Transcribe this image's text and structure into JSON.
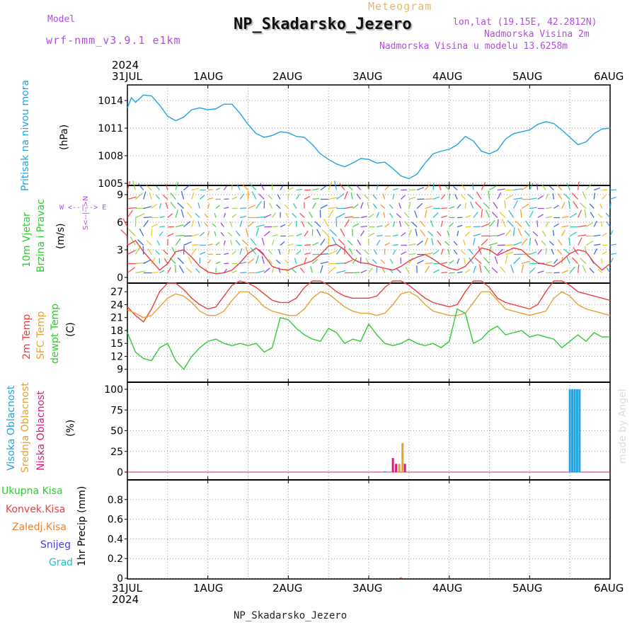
{
  "header": {
    "model_label": "Model",
    "model_name": "wrf-nmm_v3.9.1  e1km",
    "meteogram_label": "Meteogram",
    "station_title": "NP_Skadarsko_Jezero",
    "lonlat": "lon,lat (19.15E, 42.2812N)",
    "elevation": "Nadmorska Visina 2m",
    "model_elevation": "Nadmorska Visina u modelu 13.6258m"
  },
  "x_axis": {
    "year": "2024",
    "ticks": [
      "31JUL",
      "1AUG",
      "2AUG",
      "3AUG",
      "4AUG",
      "5AUG",
      "6AUG"
    ]
  },
  "footer": {
    "station": "NP_Skadarsko_Jezero",
    "credit": "made by Angel"
  },
  "panel_labels": {
    "pressure": {
      "name": "Pritisak na nivou mora",
      "unit": "(hPa)"
    },
    "wind": {
      "line1": "10m Vjetar",
      "line2": "Brzina i Pravac",
      "unit": "(m/s)",
      "compass_ns": "S<--|-->N",
      "compass_we": "W <--|--> E"
    },
    "temp": {
      "t2m": "2m Temp",
      "sfc": "SFC Temp",
      "dew": "dewpt Temp",
      "unit": "(C)"
    },
    "cloud": {
      "high": "Visoka Oblacnost",
      "mid": "Srednja Oblacnost",
      "low": "Niska Oblacnost",
      "unit": "(%)"
    },
    "precip": {
      "unit": "1hr Precip (mm)",
      "legend": [
        "Ukupna Kisa",
        "Konvek.Kisa",
        "Zaledj.Kisa",
        "Snijeg",
        "Grad"
      ]
    }
  },
  "colors": {
    "pressure": "#1fa4e0",
    "t2m": "#e84040",
    "sfc": "#e8a030",
    "dew": "#2ecc2e",
    "wind_speed": "#e84040",
    "cloud_high": "#1fa4e0",
    "cloud_mid": "#e8a030",
    "cloud_low": "#d0207a",
    "precip_total": "#2ecc2e",
    "precip_conv": "#e84040",
    "precip_freez": "#f08030",
    "precip_snow": "#4040e0",
    "precip_hail": "#20c0c0",
    "purple_text": "#b04ee0"
  },
  "chart_data": [
    {
      "type": "line",
      "name": "pressure",
      "ylim": [
        1005,
        1015
      ],
      "yticks": [
        1005,
        1008,
        1011,
        1014
      ],
      "x": [
        0,
        0.05,
        0.1,
        0.2,
        0.3,
        0.4,
        0.5,
        0.6,
        0.7,
        0.8,
        0.9,
        1.0,
        1.1,
        1.2,
        1.3,
        1.4,
        1.5,
        1.6,
        1.7,
        1.8,
        1.9,
        2.0,
        2.1,
        2.2,
        2.3,
        2.4,
        2.5,
        2.6,
        2.7,
        2.8,
        2.9,
        3.0,
        3.1,
        3.2,
        3.3,
        3.4,
        3.5,
        3.6,
        3.7,
        3.8,
        3.9,
        4.0,
        4.1,
        4.2,
        4.3,
        4.4,
        4.5,
        4.6,
        4.7,
        4.8,
        4.9,
        5.0,
        5.1,
        5.2,
        5.3,
        5.4,
        5.5,
        5.6,
        5.7,
        5.8,
        5.9,
        6.0
      ],
      "values": [
        1013.2,
        1014.3,
        1013.8,
        1014.6,
        1014.5,
        1013.5,
        1012.3,
        1011.8,
        1012.2,
        1013.0,
        1013.2,
        1013.0,
        1013.1,
        1013.6,
        1013.6,
        1012.6,
        1011.4,
        1010.4,
        1010.0,
        1010.2,
        1010.6,
        1010.5,
        1010.1,
        1010.0,
        1009.2,
        1008.2,
        1007.6,
        1007.1,
        1006.8,
        1007.2,
        1007.7,
        1007.6,
        1007.2,
        1007.3,
        1006.6,
        1005.8,
        1005.5,
        1006.0,
        1007.2,
        1008.2,
        1008.5,
        1008.7,
        1009.2,
        1010.1,
        1009.6,
        1008.5,
        1008.2,
        1008.6,
        1009.8,
        1010.4,
        1010.6,
        1010.8,
        1011.4,
        1011.7,
        1011.5,
        1010.8,
        1010.0,
        1009.2,
        1009.5,
        1010.4,
        1010.9,
        1011.0
      ]
    },
    {
      "type": "scatter",
      "name": "wind",
      "ylim": [
        0,
        10
      ],
      "yticks": [
        0,
        3,
        6,
        9
      ],
      "x": [
        0,
        0.1,
        0.2,
        0.3,
        0.4,
        0.5,
        0.6,
        0.7,
        0.8,
        0.9,
        1.0,
        1.1,
        1.2,
        1.3,
        1.4,
        1.5,
        1.6,
        1.7,
        1.8,
        1.9,
        2.0,
        2.1,
        2.2,
        2.3,
        2.4,
        2.5,
        2.6,
        2.7,
        2.8,
        2.9,
        3.0,
        3.1,
        3.2,
        3.3,
        3.4,
        3.5,
        3.6,
        3.7,
        3.8,
        3.9,
        4.0,
        4.1,
        4.2,
        4.3,
        4.4,
        4.5,
        4.6,
        4.7,
        4.8,
        4.9,
        5.0,
        5.1,
        5.2,
        5.3,
        5.4,
        5.5,
        5.6,
        5.7,
        5.8,
        5.9,
        6.0
      ],
      "values": [
        3.5,
        4.0,
        2.8,
        1.8,
        0.8,
        1.5,
        2.8,
        3.0,
        2.2,
        1.2,
        0.6,
        0.4,
        0.5,
        0.8,
        1.6,
        2.6,
        3.2,
        2.4,
        1.2,
        0.9,
        0.8,
        1.2,
        1.5,
        1.8,
        2.5,
        3.4,
        3.6,
        3.0,
        2.0,
        1.6,
        1.5,
        1.2,
        1.0,
        0.8,
        1.2,
        1.8,
        2.2,
        2.5,
        2.0,
        1.4,
        1.0,
        0.8,
        1.2,
        2.2,
        3.2,
        3.0,
        2.4,
        2.8,
        3.2,
        3.0,
        2.2,
        1.6,
        1.4,
        1.2,
        1.8,
        2.6,
        3.0,
        2.8,
        1.6,
        0.8,
        1.5
      ]
    },
    {
      "type": "line",
      "name": "temperature",
      "ylim": [
        6,
        29
      ],
      "yticks": [
        9,
        12,
        15,
        18,
        21,
        24,
        27
      ],
      "x": [
        0,
        0.1,
        0.2,
        0.3,
        0.4,
        0.5,
        0.6,
        0.7,
        0.8,
        0.9,
        1.0,
        1.1,
        1.2,
        1.3,
        1.4,
        1.5,
        1.6,
        1.7,
        1.8,
        1.9,
        2.0,
        2.1,
        2.2,
        2.3,
        2.4,
        2.5,
        2.6,
        2.7,
        2.8,
        2.9,
        3.0,
        3.1,
        3.2,
        3.3,
        3.4,
        3.5,
        3.6,
        3.7,
        3.8,
        3.9,
        4.0,
        4.1,
        4.2,
        4.3,
        4.4,
        4.5,
        4.6,
        4.7,
        4.8,
        4.9,
        5.0,
        5.1,
        5.2,
        5.3,
        5.4,
        5.5,
        5.6,
        5.7,
        5.8,
        5.9,
        6.0
      ],
      "series": [
        {
          "name": "2m Temp",
          "values": [
            23.5,
            21.5,
            20.0,
            23.0,
            27.0,
            29.0,
            29.0,
            27.5,
            25.5,
            24.0,
            23.0,
            23.5,
            26.0,
            28.5,
            29.5,
            29.0,
            28.0,
            26.5,
            25.0,
            24.5,
            24.5,
            25.5,
            28.0,
            29.5,
            29.5,
            28.5,
            27.0,
            26.0,
            25.5,
            25.5,
            25.5,
            26.0,
            28.0,
            29.5,
            29.5,
            28.5,
            27.0,
            25.5,
            24.5,
            24.0,
            23.5,
            24.0,
            27.0,
            29.5,
            29.5,
            28.0,
            25.5,
            24.5,
            24.0,
            23.5,
            23.0,
            24.0,
            27.0,
            29.5,
            29.5,
            28.5,
            27.0,
            26.5,
            26.0,
            25.5,
            25.0
          ]
        },
        {
          "name": "SFC Temp",
          "values": [
            22.8,
            22.0,
            21.0,
            21.5,
            23.5,
            25.5,
            26.5,
            26.0,
            24.5,
            22.5,
            21.5,
            21.5,
            22.5,
            25.0,
            27.0,
            27.0,
            25.5,
            23.5,
            22.5,
            22.0,
            21.5,
            21.5,
            23.0,
            25.5,
            27.0,
            26.5,
            25.0,
            23.5,
            22.5,
            22.0,
            22.0,
            21.5,
            22.0,
            24.0,
            26.5,
            27.0,
            26.0,
            24.0,
            22.5,
            22.0,
            21.5,
            21.5,
            22.0,
            24.5,
            27.0,
            27.0,
            25.0,
            23.0,
            22.5,
            22.0,
            21.5,
            22.0,
            22.5,
            25.5,
            27.0,
            26.0,
            24.0,
            23.0,
            22.5,
            22.0,
            21.5
          ]
        },
        {
          "name": "dewpt Temp",
          "values": [
            17.5,
            13.0,
            11.5,
            11.0,
            14.0,
            15.0,
            11.0,
            9.0,
            12.0,
            14.0,
            15.5,
            16.0,
            15.0,
            14.5,
            15.0,
            14.5,
            15.0,
            13.0,
            14.0,
            21.0,
            20.5,
            18.5,
            17.0,
            16.0,
            15.5,
            18.5,
            17.5,
            15.0,
            16.0,
            15.5,
            19.5,
            17.0,
            15.0,
            14.5,
            15.0,
            16.0,
            15.0,
            14.5,
            15.0,
            14.0,
            15.5,
            23.0,
            22.0,
            15.0,
            16.0,
            18.0,
            19.0,
            17.0,
            17.5,
            18.0,
            16.5,
            17.0,
            16.5,
            16.0,
            14.0,
            15.5,
            17.0,
            15.5,
            17.5,
            16.5,
            16.5
          ]
        }
      ]
    },
    {
      "type": "bar",
      "name": "cloud",
      "ylim": [
        0,
        100
      ],
      "yticks": [
        0,
        25,
        50,
        75,
        100
      ],
      "series": [
        {
          "name": "Visoka Oblacnost",
          "x": [
            3.2,
            5.5,
            5.53,
            5.56,
            5.59,
            5.62
          ],
          "values": [
            1,
            100,
            100,
            100,
            100,
            100
          ]
        },
        {
          "name": "Srednja Oblacnost",
          "x": [
            3.38,
            3.42
          ],
          "values": [
            10,
            35
          ]
        },
        {
          "name": "Niska Oblacnost",
          "x": [
            3.3,
            3.34,
            3.45
          ],
          "values": [
            17,
            10,
            10
          ]
        }
      ]
    },
    {
      "type": "bar",
      "name": "precip",
      "ylim": [
        0,
        1.0
      ],
      "yticks": [
        0,
        0.2,
        0.4,
        0.6,
        0.8
      ],
      "series": [
        {
          "name": "Ukupna Kisa",
          "x": [
            3.4
          ],
          "values": [
            0.01
          ]
        }
      ]
    }
  ]
}
